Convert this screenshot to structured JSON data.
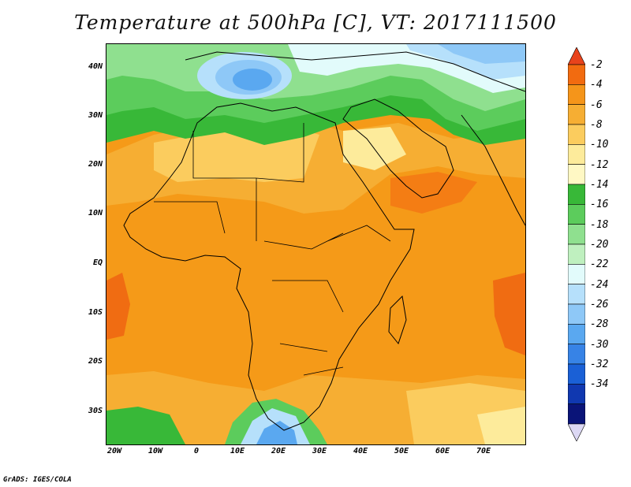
{
  "title": "Temperature at 500hPa [C], VT: 2017111500",
  "credit": "GrADS: IGES/COLA",
  "map": {
    "lon_range": [
      -22,
      80
    ],
    "lat_range": [
      -37,
      45
    ],
    "lat_labels": [
      {
        "lat": 40,
        "text": "40N"
      },
      {
        "lat": 30,
        "text": "30N"
      },
      {
        "lat": 20,
        "text": "20N"
      },
      {
        "lat": 10,
        "text": "10N"
      },
      {
        "lat": 0,
        "text": "EQ"
      },
      {
        "lat": -10,
        "text": "10S"
      },
      {
        "lat": -20,
        "text": "20S"
      },
      {
        "lat": -30,
        "text": "30S"
      }
    ],
    "lon_labels": [
      {
        "lon": -20,
        "text": "20W"
      },
      {
        "lon": -10,
        "text": "10W"
      },
      {
        "lon": 0,
        "text": "0"
      },
      {
        "lon": 10,
        "text": "10E"
      },
      {
        "lon": 20,
        "text": "20E"
      },
      {
        "lon": 30,
        "text": "30E"
      },
      {
        "lon": 40,
        "text": "40E"
      },
      {
        "lon": 50,
        "text": "50E"
      },
      {
        "lon": 60,
        "text": "60E"
      },
      {
        "lon": 70,
        "text": "70E"
      }
    ]
  },
  "colorbar": {
    "labels": [
      "-2",
      "-4",
      "-6",
      "-8",
      "-10",
      "-12",
      "-14",
      "-16",
      "-18",
      "-20",
      "-22",
      "-24",
      "-26",
      "-28",
      "-30",
      "-32",
      "-34"
    ],
    "colors": [
      "#e8431c",
      "#f26b10",
      "#f5951a",
      "#f6ae33",
      "#fbcc5e",
      "#fdeb9b",
      "#fff8c4",
      "#38b838",
      "#5ccc5c",
      "#8fe08f",
      "#bff0bf",
      "#e2fbfb",
      "#b6e0fb",
      "#8ec8f7",
      "#5aa8f0",
      "#3783e6",
      "#1a60d6",
      "#1038b0",
      "#0a1478",
      "#dcd8f4"
    ]
  }
}
